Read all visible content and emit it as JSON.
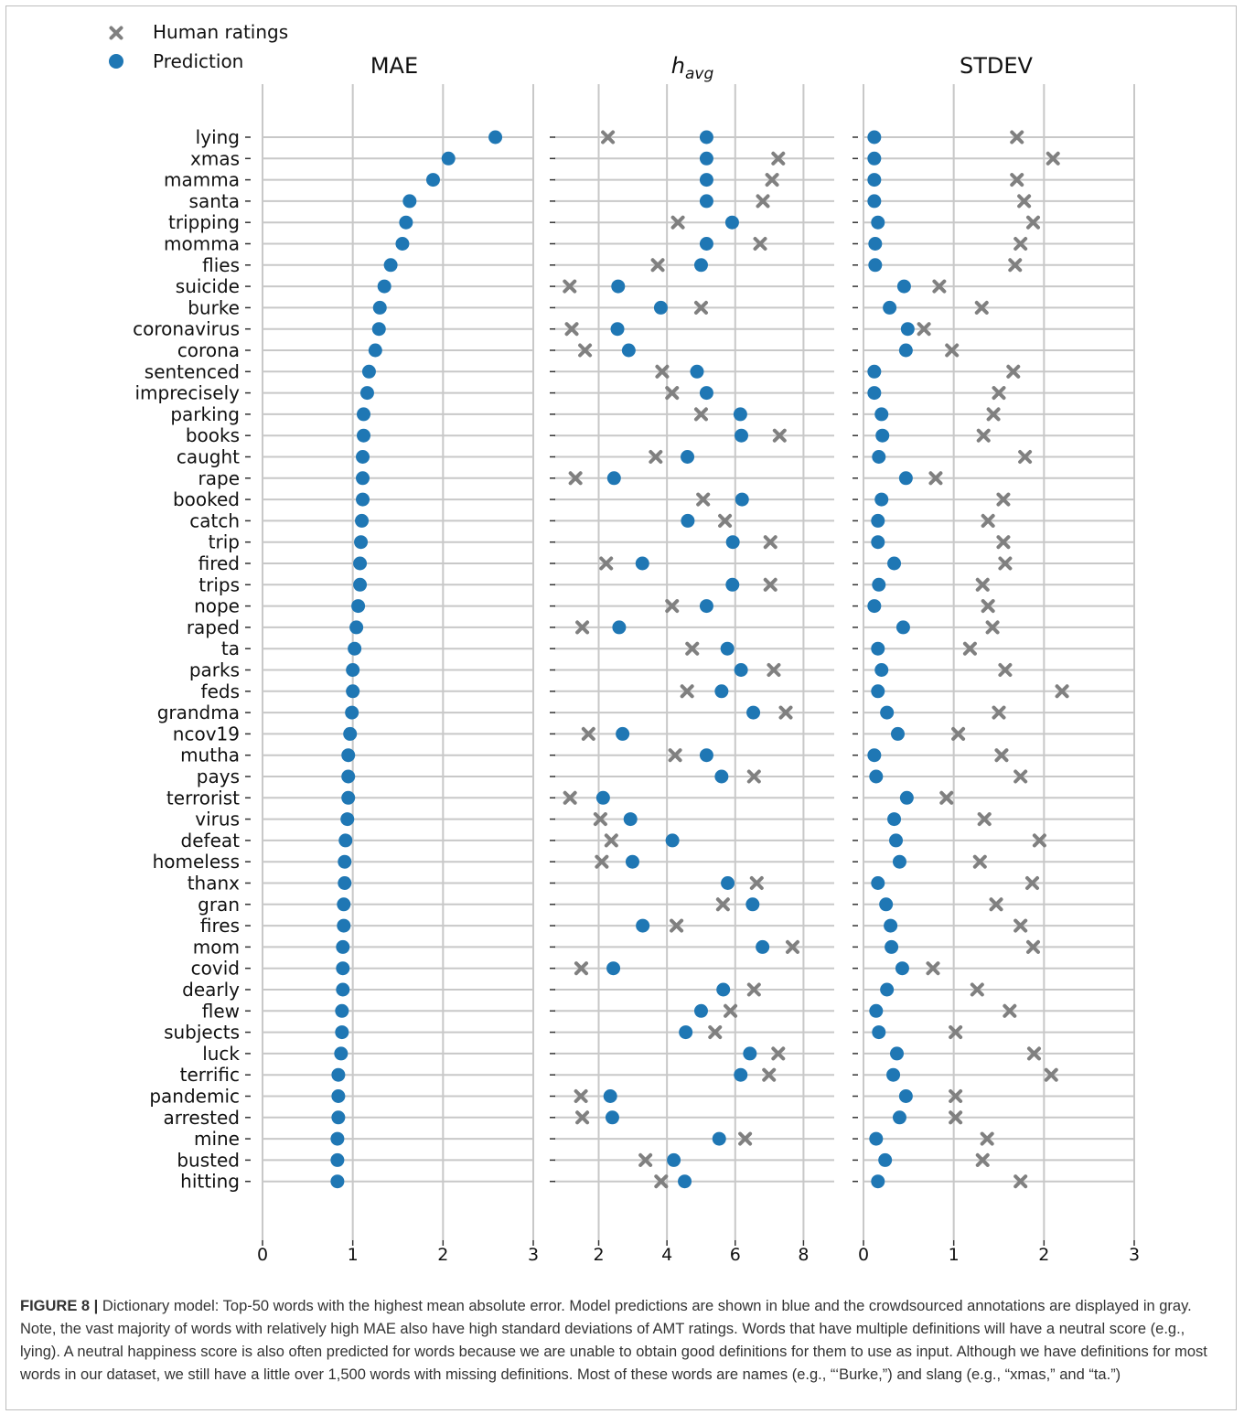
{
  "chart_data": {
    "type": "scatter",
    "words": [
      "lying",
      "xmas",
      "mamma",
      "santa",
      "tripping",
      "momma",
      "flies",
      "suicide",
      "burke",
      "coronavirus",
      "corona",
      "sentenced",
      "imprecisely",
      "parking",
      "books",
      "caught",
      "rape",
      "booked",
      "catch",
      "trip",
      "fired",
      "trips",
      "nope",
      "raped",
      "ta",
      "parks",
      "feds",
      "grandma",
      "ncov19",
      "mutha",
      "pays",
      "terrorist",
      "virus",
      "defeat",
      "homeless",
      "thanx",
      "gran",
      "fires",
      "mom",
      "covid",
      "dearly",
      "flew",
      "subjects",
      "luck",
      "terrific",
      "pandemic",
      "arrested",
      "mine",
      "busted",
      "hitting"
    ],
    "legend": [
      {
        "name": "Human ratings",
        "marker": "x",
        "color": "#808080"
      },
      {
        "name": "Prediction",
        "marker": "circle",
        "color": "#1f77b4"
      }
    ],
    "legend_position": "top-left",
    "grid": true,
    "panels": [
      {
        "title": "MAE",
        "xlim": [
          0,
          3
        ],
        "xticks": [
          "0",
          "1",
          "2",
          "3"
        ],
        "prediction": [
          2.58,
          2.06,
          1.89,
          1.63,
          1.59,
          1.55,
          1.42,
          1.35,
          1.3,
          1.29,
          1.25,
          1.18,
          1.16,
          1.12,
          1.12,
          1.11,
          1.11,
          1.11,
          1.1,
          1.09,
          1.08,
          1.08,
          1.06,
          1.04,
          1.02,
          1.0,
          1.0,
          0.99,
          0.97,
          0.95,
          0.95,
          0.95,
          0.94,
          0.92,
          0.91,
          0.91,
          0.9,
          0.9,
          0.89,
          0.89,
          0.89,
          0.88,
          0.88,
          0.87,
          0.84,
          0.84,
          0.84,
          0.83,
          0.83,
          0.83
        ],
        "human": null
      },
      {
        "title": "h",
        "title_sub": "avg",
        "xlim": [
          0.7,
          8.9
        ],
        "xticks": [
          "2",
          "4",
          "6",
          "8"
        ],
        "prediction": [
          5.16,
          5.16,
          5.16,
          5.16,
          5.91,
          5.16,
          5.0,
          2.57,
          3.82,
          2.55,
          2.88,
          4.88,
          5.16,
          6.15,
          6.18,
          4.6,
          2.45,
          6.2,
          4.61,
          5.93,
          3.28,
          5.92,
          5.16,
          2.6,
          5.77,
          6.17,
          5.6,
          6.53,
          2.7,
          5.16,
          5.6,
          2.13,
          2.93,
          4.16,
          2.99,
          5.78,
          6.51,
          3.29,
          6.8,
          2.43,
          5.65,
          5.0,
          4.55,
          6.43,
          6.16,
          2.34,
          2.4,
          5.53,
          4.2,
          4.52
        ],
        "human": [
          2.27,
          7.26,
          7.08,
          6.81,
          4.32,
          6.73,
          3.73,
          1.15,
          5.0,
          1.21,
          1.6,
          3.86,
          4.15,
          5.0,
          7.3,
          3.67,
          1.32,
          5.06,
          5.7,
          7.03,
          2.22,
          7.03,
          4.15,
          1.52,
          4.74,
          7.13,
          4.59,
          7.48,
          1.7,
          4.24,
          6.55,
          1.16,
          2.05,
          2.37,
          2.09,
          6.63,
          5.64,
          4.28,
          7.68,
          1.49,
          6.55,
          5.86,
          5.41,
          7.26,
          6.99,
          1.48,
          1.52,
          6.29,
          3.37,
          3.83
        ]
      },
      {
        "title": "STDEV",
        "xlim": [
          0,
          3
        ],
        "xticks": [
          "0",
          "1",
          "2",
          "3"
        ],
        "prediction": [
          0.12,
          0.12,
          0.12,
          0.12,
          0.16,
          0.13,
          0.13,
          0.45,
          0.29,
          0.49,
          0.47,
          0.12,
          0.12,
          0.2,
          0.21,
          0.17,
          0.47,
          0.2,
          0.16,
          0.16,
          0.34,
          0.17,
          0.12,
          0.44,
          0.16,
          0.2,
          0.16,
          0.26,
          0.38,
          0.12,
          0.14,
          0.48,
          0.34,
          0.36,
          0.4,
          0.16,
          0.25,
          0.3,
          0.31,
          0.43,
          0.26,
          0.14,
          0.17,
          0.37,
          0.33,
          0.47,
          0.4,
          0.14,
          0.24,
          0.16
        ],
        "human": [
          1.7,
          2.1,
          1.7,
          1.78,
          1.88,
          1.74,
          1.68,
          0.84,
          1.31,
          0.67,
          0.98,
          1.66,
          1.5,
          1.44,
          1.33,
          1.79,
          0.8,
          1.55,
          1.38,
          1.55,
          1.57,
          1.32,
          1.38,
          1.43,
          1.18,
          1.57,
          2.2,
          1.5,
          1.05,
          1.53,
          1.74,
          0.92,
          1.34,
          1.95,
          1.29,
          1.87,
          1.47,
          1.74,
          1.88,
          0.77,
          1.26,
          1.62,
          1.02,
          1.89,
          2.08,
          1.02,
          1.02,
          1.37,
          1.32,
          1.74
        ]
      }
    ]
  },
  "caption": {
    "label": "FIGURE 8 |",
    "text": "Dictionary model: Top-50 words with the highest mean absolute error. Model predictions are shown in blue and the crowdsourced annotations are displayed in gray. Note, the vast majority of words with relatively high MAE also have high standard deviations of AMT ratings. Words that have multiple definitions will have a neutral score (e.g., lying). A neutral happiness score is also often predicted for words because we are unable to obtain good definitions for them to use as input. Although we have definitions for most words in our dataset, we still have a little over 1,500 words with missing definitions. Most of these words are names (e.g., “‘Burke,”) and slang (e.g., “xmas,” and “ta.”)"
  }
}
